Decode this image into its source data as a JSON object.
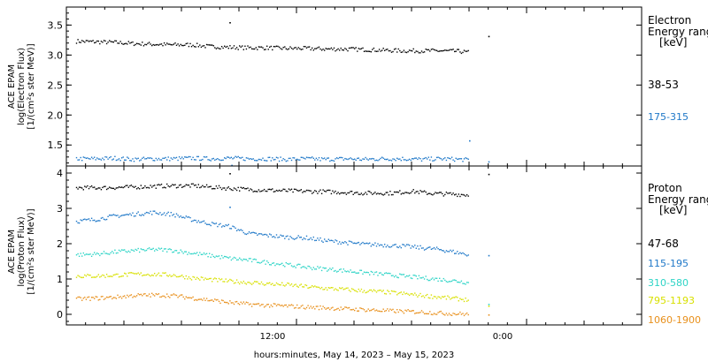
{
  "figure": {
    "x_axis_title": "hours:minutes, May 14, 2023 – May 15, 2023",
    "x_tick_labels": [
      "12:00",
      "0:00"
    ]
  },
  "chart_data": [
    {
      "type": "scatter",
      "panel": "electron",
      "ylabel_lines": [
        "ACE EPAM",
        "log(Electron Flux)",
        "[1/(cm²s ster MeV)]"
      ],
      "legend_title_lines": [
        "Electron",
        "Energy ranges",
        "[keV]"
      ],
      "legend_placement": "right",
      "ylim": [
        1.15,
        3.8
      ],
      "xlim_hours": [
        0,
        30
      ],
      "y_ticks": [
        1.5,
        2.0,
        2.5,
        3.0,
        3.5
      ],
      "y_tick_labels": [
        "1.5",
        "2.0",
        "2.5",
        "3.0",
        "3.5"
      ],
      "series": [
        {
          "name": "38-53",
          "color": "#000000",
          "points": [
            [
              0.5,
              3.24
            ],
            [
              1.5,
              3.23
            ],
            [
              2.5,
              3.22
            ],
            [
              3.5,
              3.2
            ],
            [
              4.5,
              3.19
            ],
            [
              5.5,
              3.18
            ],
            [
              6.5,
              3.18
            ],
            [
              7.5,
              3.15
            ],
            [
              8.5,
              3.14
            ],
            [
              9.5,
              3.13
            ],
            [
              10.5,
              3.13
            ],
            [
              11.5,
              3.12
            ],
            [
              12.5,
              3.12
            ],
            [
              13.5,
              3.11
            ],
            [
              14.5,
              3.11
            ],
            [
              15.5,
              3.1
            ],
            [
              16.5,
              3.09
            ],
            [
              17.5,
              3.08
            ],
            [
              18.5,
              3.08
            ],
            [
              19.5,
              3.08
            ],
            [
              20.5,
              3.07
            ],
            [
              21.0,
              3.05
            ]
          ],
          "outliers": [
            [
              8.5,
              3.55
            ],
            [
              22.0,
              3.32
            ]
          ]
        },
        {
          "name": "175-315",
          "color": "#1f78c8",
          "points": [
            [
              0.5,
              1.28
            ],
            [
              1.5,
              1.28
            ],
            [
              2.5,
              1.29
            ],
            [
              3.5,
              1.27
            ],
            [
              4.5,
              1.28
            ],
            [
              5.5,
              1.28
            ],
            [
              6.5,
              1.29
            ],
            [
              7.5,
              1.28
            ],
            [
              8.5,
              1.29
            ],
            [
              9.5,
              1.28
            ],
            [
              10.5,
              1.28
            ],
            [
              11.5,
              1.27
            ],
            [
              12.5,
              1.28
            ],
            [
              13.5,
              1.27
            ],
            [
              14.5,
              1.28
            ],
            [
              15.5,
              1.27
            ],
            [
              16.5,
              1.28
            ],
            [
              17.5,
              1.28
            ],
            [
              18.5,
              1.27
            ],
            [
              19.5,
              1.28
            ],
            [
              20.5,
              1.27
            ],
            [
              21.0,
              1.26
            ]
          ],
          "outliers": [
            [
              21.0,
              1.58
            ],
            [
              22.0,
              1.23
            ],
            [
              8.6,
              1.17
            ]
          ]
        }
      ]
    },
    {
      "type": "scatter",
      "panel": "proton",
      "ylabel_lines": [
        "ACE EPAM",
        "log(Proton Flux)",
        "[1/(cm²s ster MeV)]"
      ],
      "legend_title_lines": [
        "Proton",
        "Energy ranges",
        "[keV]"
      ],
      "legend_placement": "right",
      "ylim": [
        -0.3,
        4.2
      ],
      "xlim_hours": [
        0,
        30
      ],
      "y_ticks": [
        0,
        1,
        2,
        3,
        4
      ],
      "y_tick_labels": [
        "0",
        "1",
        "2",
        "3",
        "4"
      ],
      "series": [
        {
          "name": "47-68",
          "color": "#000000",
          "points": [
            [
              0.5,
              3.6
            ],
            [
              2,
              3.6
            ],
            [
              3.5,
              3.62
            ],
            [
              5,
              3.65
            ],
            [
              6.5,
              3.66
            ],
            [
              8,
              3.6
            ],
            [
              9.5,
              3.55
            ],
            [
              11,
              3.52
            ],
            [
              12.5,
              3.5
            ],
            [
              14,
              3.48
            ],
            [
              15.5,
              3.45
            ],
            [
              17,
              3.45
            ],
            [
              18,
              3.5
            ],
            [
              19,
              3.44
            ],
            [
              20,
              3.42
            ],
            [
              21,
              3.4
            ]
          ],
          "outliers": [
            [
              8.5,
              4.0
            ],
            [
              22.0,
              3.98
            ]
          ]
        },
        {
          "name": "115-195",
          "color": "#1f78c8",
          "points": [
            [
              0.5,
              2.65
            ],
            [
              1.5,
              2.7
            ],
            [
              2.5,
              2.8
            ],
            [
              3.5,
              2.85
            ],
            [
              4.5,
              2.9
            ],
            [
              5.5,
              2.85
            ],
            [
              6.5,
              2.7
            ],
            [
              7.5,
              2.58
            ],
            [
              8.5,
              2.5
            ],
            [
              9.5,
              2.3
            ],
            [
              10.5,
              2.25
            ],
            [
              11.5,
              2.2
            ],
            [
              12.5,
              2.18
            ],
            [
              13.5,
              2.1
            ],
            [
              14.5,
              2.05
            ],
            [
              15.5,
              2.0
            ],
            [
              16.5,
              1.98
            ],
            [
              17.5,
              1.95
            ],
            [
              18.5,
              1.9
            ],
            [
              19.5,
              1.85
            ],
            [
              20.5,
              1.75
            ],
            [
              21.0,
              1.7
            ]
          ],
          "outliers": [
            [
              8.5,
              3.05
            ],
            [
              22.0,
              1.68
            ]
          ]
        },
        {
          "name": "310-580",
          "color": "#2dd4c6",
          "points": [
            [
              0.5,
              1.7
            ],
            [
              1.5,
              1.72
            ],
            [
              2.5,
              1.78
            ],
            [
              3.5,
              1.82
            ],
            [
              4.5,
              1.85
            ],
            [
              5.5,
              1.83
            ],
            [
              6.5,
              1.75
            ],
            [
              7.5,
              1.68
            ],
            [
              8.5,
              1.6
            ],
            [
              9.5,
              1.55
            ],
            [
              10.5,
              1.48
            ],
            [
              11.5,
              1.42
            ],
            [
              12.5,
              1.35
            ],
            [
              13.5,
              1.3
            ],
            [
              14.5,
              1.25
            ],
            [
              15.5,
              1.2
            ],
            [
              16.5,
              1.15
            ],
            [
              17.5,
              1.1
            ],
            [
              18.5,
              1.05
            ],
            [
              19.5,
              1.0
            ],
            [
              20.5,
              0.95
            ],
            [
              21.0,
              0.9
            ]
          ],
          "outliers": [
            [
              22.0,
              0.3
            ]
          ]
        },
        {
          "name": "795-1193",
          "color": "#d8e000",
          "points": [
            [
              0.5,
              1.1
            ],
            [
              1.5,
              1.1
            ],
            [
              2.5,
              1.12
            ],
            [
              3.5,
              1.15
            ],
            [
              4.5,
              1.15
            ],
            [
              5.5,
              1.13
            ],
            [
              6.5,
              1.05
            ],
            [
              7.5,
              1.0
            ],
            [
              8.5,
              0.95
            ],
            [
              9.5,
              0.92
            ],
            [
              10.5,
              0.88
            ],
            [
              11.5,
              0.85
            ],
            [
              12.5,
              0.8
            ],
            [
              13.5,
              0.75
            ],
            [
              14.5,
              0.72
            ],
            [
              15.5,
              0.68
            ],
            [
              16.5,
              0.65
            ],
            [
              17.5,
              0.6
            ],
            [
              18.5,
              0.55
            ],
            [
              19.5,
              0.5
            ],
            [
              20.5,
              0.45
            ],
            [
              21.0,
              0.42
            ]
          ],
          "outliers": [
            [
              22.0,
              0.25
            ]
          ]
        },
        {
          "name": "1060-1900",
          "color": "#e8901c",
          "points": [
            [
              0.5,
              0.45
            ],
            [
              1.5,
              0.47
            ],
            [
              2.5,
              0.5
            ],
            [
              3.5,
              0.55
            ],
            [
              4.5,
              0.56
            ],
            [
              5.5,
              0.55
            ],
            [
              6.5,
              0.48
            ],
            [
              7.5,
              0.42
            ],
            [
              8.5,
              0.35
            ],
            [
              9.5,
              0.3
            ],
            [
              10.5,
              0.27
            ],
            [
              11.5,
              0.25
            ],
            [
              12.5,
              0.22
            ],
            [
              13.5,
              0.2
            ],
            [
              14.5,
              0.17
            ],
            [
              15.5,
              0.15
            ],
            [
              16.5,
              0.12
            ],
            [
              17.5,
              0.1
            ],
            [
              18.5,
              0.08
            ],
            [
              19.5,
              0.05
            ],
            [
              20.5,
              0.03
            ],
            [
              21.0,
              0.02
            ]
          ],
          "outliers": [
            [
              22.0,
              0.0
            ]
          ]
        }
      ]
    }
  ]
}
